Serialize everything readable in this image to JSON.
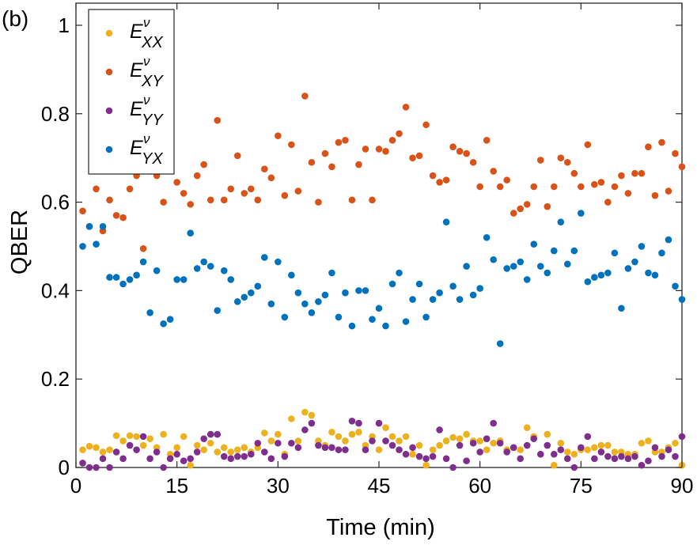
{
  "panel_label": "(b)",
  "chart_data": {
    "type": "scatter",
    "xlabel": "Time (min)",
    "ylabel": "QBER",
    "xlim": [
      0,
      90
    ],
    "ylim": [
      0,
      1.05
    ],
    "xticks": [
      0,
      15,
      30,
      45,
      60,
      75,
      90
    ],
    "yticks": [
      0,
      0.2,
      0.4,
      0.6,
      0.8,
      1
    ],
    "ytick_labels": [
      "0",
      "0.2",
      "0.4",
      "0.6",
      "0.8",
      "1"
    ],
    "grid": false,
    "legend_position": "top-left",
    "x": [
      1,
      2,
      3,
      4,
      5,
      6,
      7,
      8,
      9,
      10,
      11,
      12,
      13,
      14,
      15,
      16,
      17,
      18,
      19,
      20,
      21,
      22,
      23,
      24,
      25,
      26,
      27,
      28,
      29,
      30,
      31,
      32,
      33,
      34,
      35,
      36,
      37,
      38,
      39,
      40,
      41,
      42,
      43,
      44,
      45,
      46,
      47,
      48,
      49,
      50,
      51,
      52,
      53,
      54,
      55,
      56,
      57,
      58,
      59,
      60,
      61,
      62,
      63,
      64,
      65,
      66,
      67,
      68,
      69,
      70,
      71,
      72,
      73,
      74,
      75,
      76,
      77,
      78,
      79,
      80,
      81,
      82,
      83,
      84,
      85,
      86,
      87,
      88,
      89,
      90
    ],
    "series": [
      {
        "name": "E_XX",
        "legend_base": "E",
        "legend_sup": "ν",
        "legend_sub": "XX",
        "color": "#edb120",
        "values": [
          0.04,
          0.048,
          0.045,
          0.035,
          0.04,
          0.072,
          0.06,
          0.072,
          0.07,
          0.05,
          0.065,
          0.045,
          0.075,
          0.03,
          0.045,
          0.07,
          0.005,
          0.05,
          0.04,
          0.055,
          0.035,
          0.045,
          0.035,
          0.04,
          0.045,
          0.035,
          0.045,
          0.078,
          0.06,
          0.075,
          0.03,
          0.11,
          0.06,
          0.125,
          0.118,
          0.06,
          0.05,
          0.08,
          0.07,
          0.06,
          0.075,
          0.08,
          0.05,
          0.07,
          0.04,
          0.09,
          0.07,
          0.06,
          0.07,
          0.03,
          0.05,
          0.005,
          0.04,
          0.05,
          0.06,
          0.068,
          0.065,
          0.075,
          0.06,
          0.06,
          0.04,
          0.055,
          0.06,
          0.04,
          0.045,
          0.04,
          0.09,
          0.07,
          0.03,
          0.075,
          0.005,
          0.055,
          0.035,
          0.03,
          0.04,
          0.04,
          0.045,
          0.05,
          0.05,
          0.035,
          0.035,
          0.03,
          0.03,
          0.055,
          0.06,
          0.035,
          0.035,
          0.045,
          0.055,
          0.005
        ]
      },
      {
        "name": "E_XY",
        "legend_base": "E",
        "legend_sup": "ν",
        "legend_sub": "XY",
        "color": "#d95319",
        "values": [
          0.58,
          0.545,
          0.63,
          0.535,
          0.605,
          0.57,
          0.565,
          0.63,
          0.66,
          0.495,
          0.67,
          0.66,
          0.6,
          0.71,
          0.645,
          0.62,
          0.595,
          0.66,
          0.685,
          0.605,
          0.785,
          0.605,
          0.63,
          0.705,
          0.62,
          0.63,
          0.605,
          0.675,
          0.655,
          0.75,
          0.615,
          0.73,
          0.625,
          0.84,
          0.69,
          0.6,
          0.71,
          0.68,
          0.735,
          0.74,
          0.605,
          0.685,
          0.72,
          0.605,
          0.72,
          0.715,
          0.74,
          0.755,
          0.815,
          0.7,
          0.705,
          0.775,
          0.66,
          0.645,
          0.65,
          0.725,
          0.715,
          0.71,
          0.69,
          0.635,
          0.74,
          0.67,
          0.635,
          0.65,
          0.575,
          0.585,
          0.595,
          0.635,
          0.695,
          0.59,
          0.635,
          0.7,
          0.69,
          0.665,
          0.635,
          0.73,
          0.64,
          0.645,
          0.6,
          0.635,
          0.66,
          0.62,
          0.665,
          0.665,
          0.725,
          0.615,
          0.735,
          0.625,
          0.71,
          0.68
        ]
      },
      {
        "name": "E_YY",
        "legend_base": "E",
        "legend_sup": "ν",
        "legend_sub": "YY",
        "color": "#7e2f8e",
        "values": [
          0.01,
          0.0,
          0.0,
          0.02,
          0.0,
          0.035,
          0.02,
          0.05,
          0.04,
          0.07,
          0.02,
          0.035,
          0.0,
          0.02,
          0.03,
          0.015,
          0.02,
          0.035,
          0.065,
          0.075,
          0.075,
          0.025,
          0.02,
          0.025,
          0.025,
          0.03,
          0.055,
          0.035,
          0.02,
          0.055,
          0.025,
          0.055,
          0.045,
          0.085,
          0.1,
          0.05,
          0.045,
          0.045,
          0.04,
          0.04,
          0.105,
          0.1,
          0.04,
          0.06,
          0.1,
          0.06,
          0.05,
          0.04,
          0.03,
          0.045,
          0.025,
          0.02,
          0.025,
          0.085,
          0.02,
          0.0,
          0.05,
          0.015,
          0.055,
          0.035,
          0.065,
          0.1,
          0.055,
          0.035,
          0.045,
          0.02,
          0.05,
          0.065,
          0.03,
          0.05,
          0.03,
          0.04,
          0.02,
          0.0,
          0.045,
          0.07,
          0.02,
          0.035,
          0.025,
          0.02,
          0.025,
          0.02,
          0.025,
          0.005,
          0.015,
          0.045,
          0.025,
          0.04,
          0.025,
          0.07
        ]
      },
      {
        "name": "E_YX",
        "legend_base": "E",
        "legend_sup": "ν",
        "legend_sub": "YX",
        "color": "#0072bd",
        "values": [
          0.5,
          0.545,
          0.505,
          0.545,
          0.43,
          0.43,
          0.415,
          0.425,
          0.435,
          0.465,
          0.35,
          0.445,
          0.325,
          0.335,
          0.425,
          0.425,
          0.53,
          0.45,
          0.465,
          0.455,
          0.355,
          0.445,
          0.425,
          0.375,
          0.385,
          0.395,
          0.41,
          0.475,
          0.37,
          0.465,
          0.34,
          0.435,
          0.395,
          0.37,
          0.35,
          0.375,
          0.39,
          0.44,
          0.34,
          0.395,
          0.32,
          0.4,
          0.4,
          0.335,
          0.36,
          0.32,
          0.415,
          0.44,
          0.33,
          0.38,
          0.415,
          0.34,
          0.38,
          0.395,
          0.555,
          0.41,
          0.38,
          0.455,
          0.39,
          0.405,
          0.52,
          0.47,
          0.28,
          0.45,
          0.455,
          0.465,
          0.425,
          0.505,
          0.455,
          0.44,
          0.49,
          0.555,
          0.46,
          0.49,
          0.575,
          0.42,
          0.43,
          0.435,
          0.44,
          0.485,
          0.36,
          0.45,
          0.465,
          0.5,
          0.44,
          0.435,
          0.485,
          0.515,
          0.41,
          0.38
        ]
      }
    ]
  }
}
